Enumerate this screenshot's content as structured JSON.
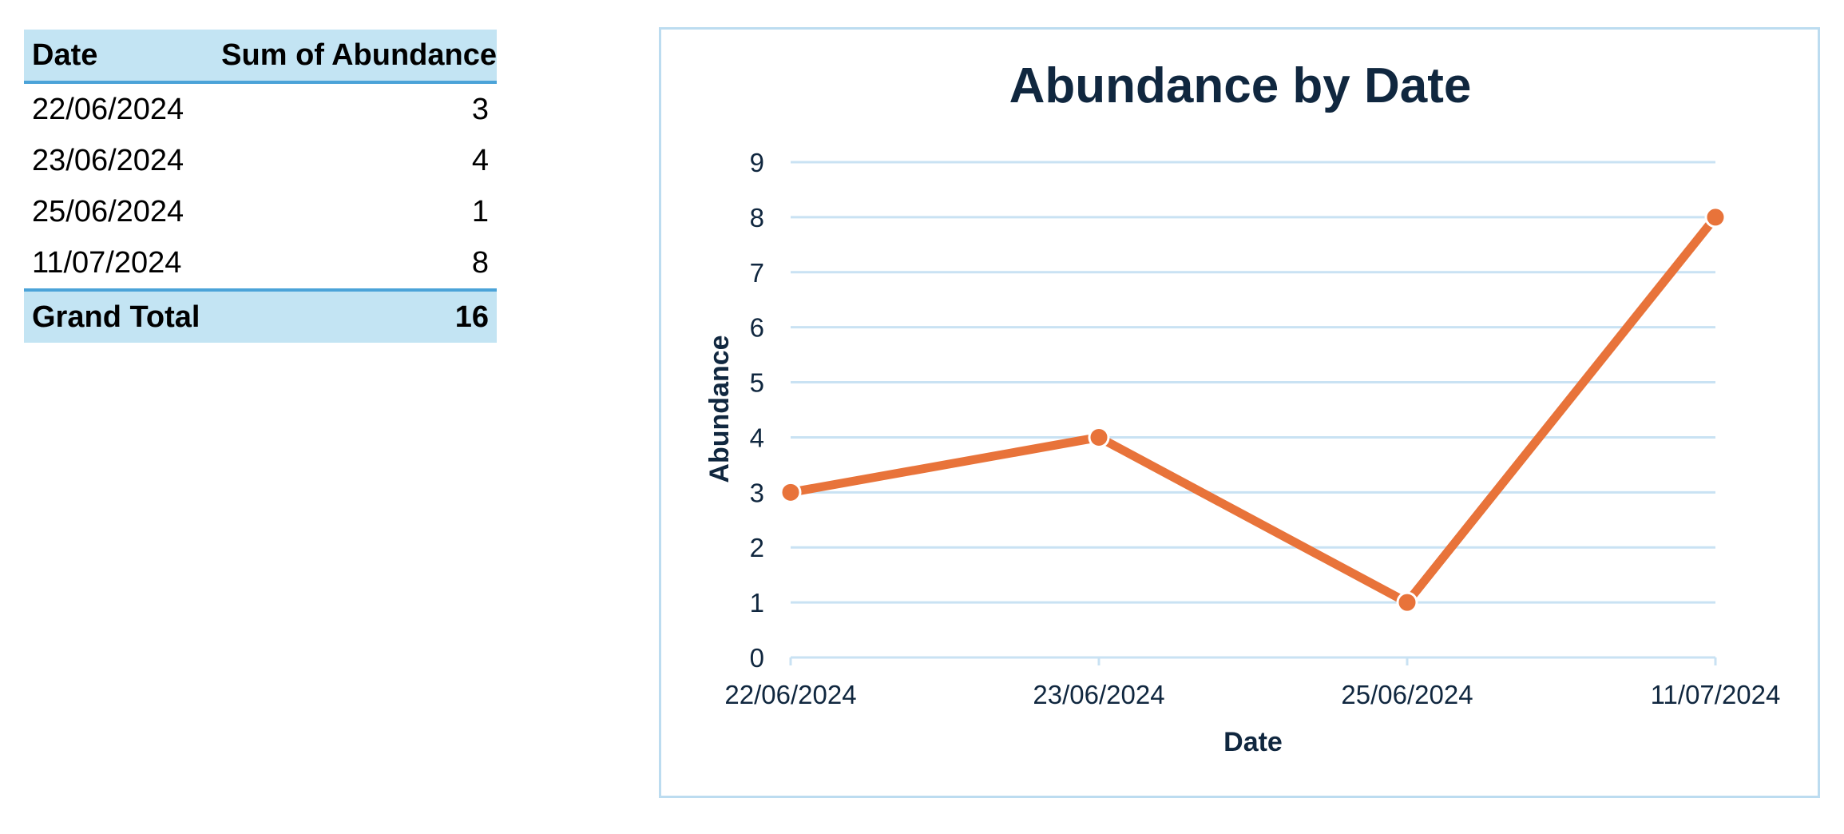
{
  "pivot": {
    "headers": {
      "date": "Date",
      "sum": "Sum of Abundance"
    },
    "rows": [
      {
        "date": "22/06/2024",
        "value": "3"
      },
      {
        "date": "23/06/2024",
        "value": "4"
      },
      {
        "date": "25/06/2024",
        "value": "1"
      },
      {
        "date": "11/07/2024",
        "value": "8"
      }
    ],
    "total": {
      "label": "Grand Total",
      "value": "16"
    }
  },
  "colors": {
    "header_fill": "#c3e4f3",
    "header_rule": "#4ba3d8",
    "line": "#e8733a",
    "gridline": "#c9e2f3",
    "chart_border": "#bcdcf0",
    "text_dark": "#10273f"
  },
  "chart_data": {
    "type": "line",
    "title": "Abundance by Date",
    "xlabel": "Date",
    "ylabel": "Abundance",
    "categories": [
      "22/06/2024",
      "23/06/2024",
      "25/06/2024",
      "11/07/2024"
    ],
    "series": [
      {
        "values": [
          3,
          4,
          1,
          8
        ]
      }
    ],
    "ylim": [
      0,
      9
    ],
    "yticks": [
      "0",
      "1",
      "2",
      "3",
      "4",
      "5",
      "6",
      "7",
      "8",
      "9"
    ],
    "grid": true,
    "markers": true
  }
}
